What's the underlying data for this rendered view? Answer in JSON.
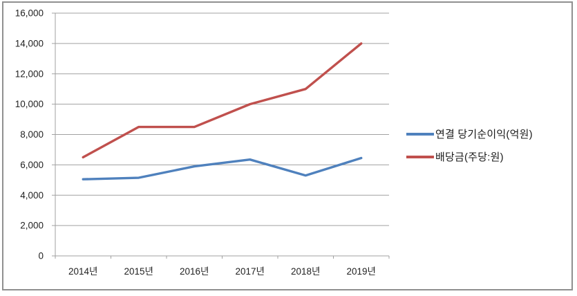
{
  "chart": {
    "background": "#FFFFFF",
    "border_color": "#8F8F8F",
    "grid_color": "#A0A0A0",
    "axis_color": "#A0A0A0",
    "text_color": "#1F1F1F"
  },
  "chart_data": {
    "type": "line",
    "title": "",
    "xlabel": "",
    "ylabel": "",
    "categories": [
      "2014년",
      "2015년",
      "2016년",
      "2017년",
      "2018년",
      "2019년"
    ],
    "series": [
      {
        "name": "연결 당기순이익(억원)",
        "color": "#4F81BD",
        "values": [
          5050,
          5150,
          5900,
          6350,
          5300,
          6450
        ]
      },
      {
        "name": "배당금(주당:원)",
        "color": "#C0504D",
        "values": [
          6500,
          8500,
          8500,
          10000,
          11000,
          14000
        ]
      }
    ],
    "ylim": [
      0,
      16000
    ],
    "ytick_step": 2000,
    "ytick_labels": [
      "0",
      "2,000",
      "4,000",
      "6,000",
      "8,000",
      "10,000",
      "12,000",
      "14,000",
      "16,000"
    ],
    "grid": true,
    "legend_position": "right"
  }
}
